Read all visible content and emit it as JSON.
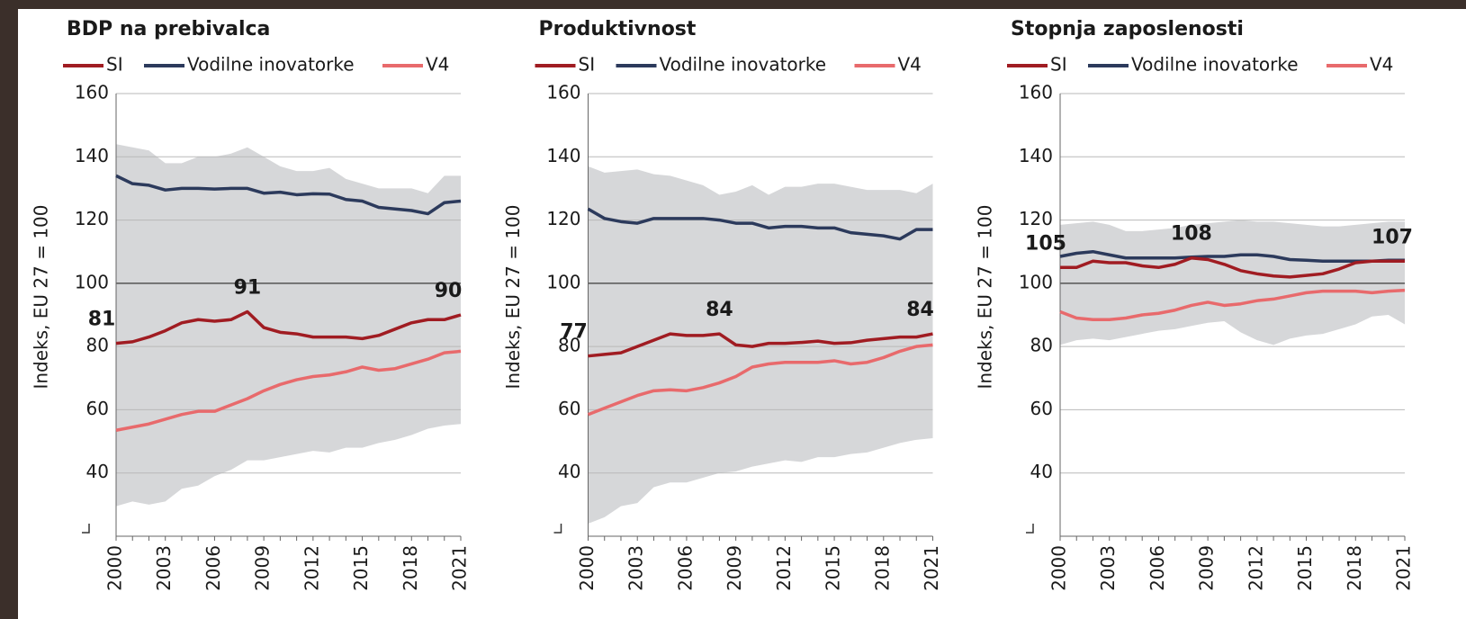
{
  "chart_data": [
    {
      "type": "line",
      "title": "BDP na prebivalca",
      "ylabel": "Indeks, EU 27 = 100",
      "x": [
        2000,
        2001,
        2002,
        2003,
        2004,
        2005,
        2006,
        2007,
        2008,
        2009,
        2010,
        2011,
        2012,
        2013,
        2014,
        2015,
        2016,
        2017,
        2018,
        2019,
        2020,
        2021
      ],
      "xlim": [
        2000,
        2021
      ],
      "xticks": [
        2000,
        2003,
        2006,
        2009,
        2012,
        2015,
        2018,
        2021
      ],
      "ylim": [
        20,
        160
      ],
      "yticks": [
        40,
        60,
        80,
        100,
        120,
        140,
        160
      ],
      "grid": true,
      "reference_line": 100,
      "band": {
        "color": "#d6d7d9",
        "upper": [
          144,
          143,
          142,
          138,
          138,
          140,
          140,
          141,
          143,
          140,
          137,
          135.5,
          135.5,
          136.5,
          133,
          131.5,
          130,
          130,
          130,
          128.5,
          134,
          134
        ],
        "lower": [
          29.5,
          31,
          30,
          31,
          35,
          36,
          39,
          41,
          44,
          44,
          45,
          46,
          47,
          46.5,
          48,
          48,
          49.5,
          50.5,
          52,
          54,
          55,
          55.5
        ]
      },
      "series": [
        {
          "name": "SI",
          "color": "#a01c22",
          "values": [
            81,
            81.5,
            83,
            85,
            87.5,
            88.5,
            88,
            88.5,
            91,
            86,
            84.5,
            84,
            83,
            83,
            83,
            82.5,
            83.5,
            85.5,
            87.5,
            88.5,
            88.5,
            90
          ],
          "value_labels": [
            "81",
            null,
            null,
            null,
            null,
            null,
            null,
            null,
            "91",
            null,
            null,
            null,
            null,
            null,
            null,
            null,
            null,
            null,
            null,
            null,
            null,
            "90"
          ]
        },
        {
          "name": "Vodilne inovatorke",
          "color": "#2c3a5c",
          "values": [
            134,
            131.5,
            131,
            129.5,
            130,
            130,
            129.8,
            130,
            130,
            128.5,
            128.8,
            128,
            128.3,
            128.2,
            126.5,
            126,
            124,
            123.5,
            123,
            122,
            125.5,
            126
          ]
        },
        {
          "name": "V4",
          "color": "#e86a6c",
          "values": [
            53.5,
            54.5,
            55.5,
            57,
            58.5,
            59.5,
            59.5,
            61.5,
            63.5,
            66,
            68,
            69.5,
            70.5,
            71,
            72,
            73.5,
            72.5,
            73,
            74.5,
            76,
            78,
            78.5
          ]
        }
      ]
    },
    {
      "type": "line",
      "title": "Produktivnost",
      "ylabel": "Indeks, EU 27 = 100",
      "x": [
        2000,
        2001,
        2002,
        2003,
        2004,
        2005,
        2006,
        2007,
        2008,
        2009,
        2010,
        2011,
        2012,
        2013,
        2014,
        2015,
        2016,
        2017,
        2018,
        2019,
        2020,
        2021
      ],
      "xlim": [
        2000,
        2021
      ],
      "xticks": [
        2000,
        2003,
        2006,
        2009,
        2012,
        2015,
        2018,
        2021
      ],
      "ylim": [
        20,
        160
      ],
      "yticks": [
        40,
        60,
        80,
        100,
        120,
        140,
        160
      ],
      "grid": true,
      "reference_line": 100,
      "band": {
        "color": "#d6d7d9",
        "upper": [
          137,
          135,
          135.5,
          136,
          134.5,
          134,
          132.5,
          131,
          128,
          129,
          131,
          128,
          130.5,
          130.5,
          131.5,
          131.5,
          130.5,
          129.5,
          129.5,
          129.5,
          128.5,
          131.5
        ],
        "lower": [
          24,
          26,
          29.5,
          30.5,
          35.5,
          37,
          37,
          38.5,
          40,
          40.5,
          42,
          43,
          44,
          43.5,
          45,
          45,
          46,
          46.5,
          48,
          49.5,
          50.5,
          51
        ]
      },
      "series": [
        {
          "name": "SI",
          "color": "#a01c22",
          "values": [
            77,
            77.5,
            78,
            80,
            82,
            84,
            83.5,
            83.5,
            84,
            80.5,
            80,
            81,
            81,
            81.3,
            81.7,
            81,
            81.2,
            82,
            82.5,
            83,
            83,
            84
          ],
          "value_labels": [
            "77",
            null,
            null,
            null,
            null,
            null,
            null,
            null,
            "84",
            null,
            null,
            null,
            null,
            null,
            null,
            null,
            null,
            null,
            null,
            null,
            null,
            "84"
          ]
        },
        {
          "name": "Vodilne inovatorke",
          "color": "#2c3a5c",
          "values": [
            123.5,
            120.5,
            119.5,
            119,
            120.5,
            120.5,
            120.5,
            120.5,
            120,
            119,
            119,
            117.5,
            118,
            118,
            117.5,
            117.5,
            116,
            115.5,
            115,
            114,
            117,
            117
          ]
        },
        {
          "name": "V4",
          "color": "#e86a6c",
          "values": [
            58.5,
            60.5,
            62.5,
            64.5,
            66,
            66.3,
            66,
            67,
            68.5,
            70.5,
            73.5,
            74.5,
            75,
            75,
            75,
            75.5,
            74.5,
            75,
            76.5,
            78.5,
            80,
            80.5
          ]
        }
      ]
    },
    {
      "type": "line",
      "title": "Stopnja zaposlenosti",
      "ylabel": "Indeks, EU 27 = 100",
      "x": [
        2000,
        2001,
        2002,
        2003,
        2004,
        2005,
        2006,
        2007,
        2008,
        2009,
        2010,
        2011,
        2012,
        2013,
        2014,
        2015,
        2016,
        2017,
        2018,
        2019,
        2020,
        2021
      ],
      "xlim": [
        2000,
        2021
      ],
      "xticks": [
        2000,
        2003,
        2006,
        2009,
        2012,
        2015,
        2018,
        2021
      ],
      "ylim": [
        20,
        160
      ],
      "yticks": [
        40,
        60,
        80,
        100,
        120,
        140,
        160
      ],
      "grid": true,
      "reference_line": 100,
      "band": {
        "color": "#d6d7d9",
        "upper": [
          118.5,
          119,
          119.5,
          118.5,
          116.5,
          116.5,
          117,
          117.5,
          118.5,
          119,
          119.5,
          120,
          119.5,
          119.5,
          119,
          118.5,
          118,
          118,
          118.5,
          119,
          119.5,
          119.5
        ],
        "lower": [
          80.5,
          82,
          82.5,
          82,
          83,
          84,
          85,
          85.5,
          86.5,
          87.5,
          88,
          84.5,
          82,
          80.5,
          82.5,
          83.5,
          84,
          85.5,
          87,
          89.5,
          90,
          87
        ]
      },
      "series": [
        {
          "name": "SI",
          "color": "#a01c22",
          "values": [
            105,
            105,
            107,
            106.5,
            106.5,
            105.5,
            105,
            106,
            108,
            107.5,
            106,
            104,
            103,
            102.3,
            102,
            102.5,
            103,
            104.5,
            106.5,
            107,
            107,
            107
          ],
          "value_labels": [
            "105",
            null,
            null,
            null,
            null,
            null,
            null,
            null,
            "108",
            null,
            null,
            null,
            null,
            null,
            null,
            null,
            null,
            null,
            null,
            null,
            null,
            "107"
          ]
        },
        {
          "name": "Vodilne inovatorke",
          "color": "#2c3a5c",
          "values": [
            108.5,
            109.5,
            110,
            109,
            108,
            108,
            108,
            108,
            108.3,
            108.5,
            108.5,
            109,
            109,
            108.5,
            107.5,
            107.3,
            107,
            107,
            107,
            107,
            107.3,
            107.3
          ]
        },
        {
          "name": "V4",
          "color": "#e86a6c",
          "values": [
            91,
            89,
            88.5,
            88.5,
            89,
            90,
            90.5,
            91.5,
            93,
            94,
            93,
            93.5,
            94.5,
            95,
            96,
            97,
            97.5,
            97.5,
            97.5,
            97,
            97.5,
            97.8
          ]
        }
      ]
    }
  ]
}
